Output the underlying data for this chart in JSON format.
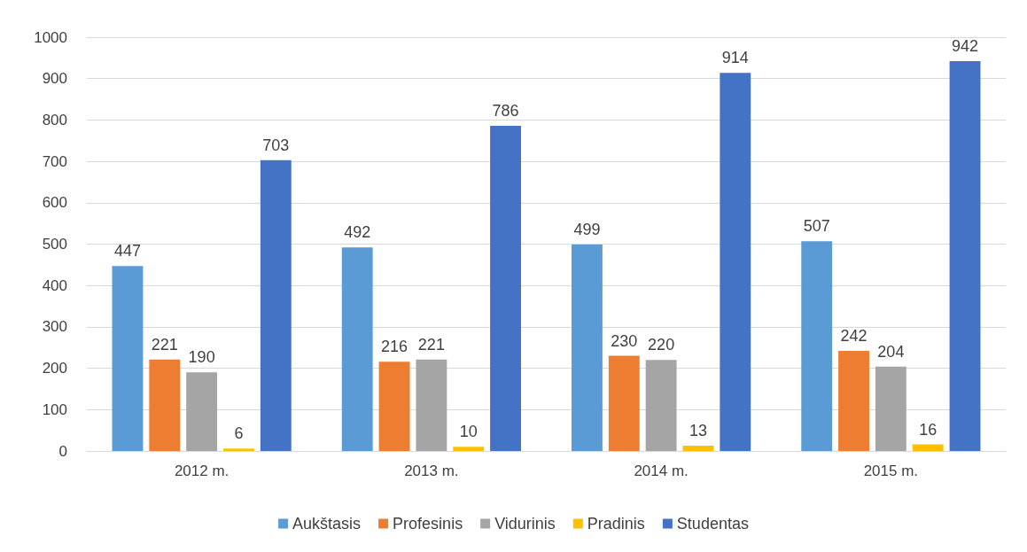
{
  "chart_data": {
    "type": "bar",
    "categories": [
      "2012 m.",
      "2013 m.",
      "2014 m.",
      "2015 m."
    ],
    "series": [
      {
        "name": "Aukštasis",
        "color": "#5b9bd5",
        "values": [
          447,
          492,
          499,
          507
        ]
      },
      {
        "name": "Profesinis",
        "color": "#ed7d31",
        "values": [
          221,
          216,
          230,
          242
        ]
      },
      {
        "name": "Vidurinis",
        "color": "#a5a5a5",
        "values": [
          190,
          221,
          220,
          204
        ]
      },
      {
        "name": "Pradinis",
        "color": "#ffc000",
        "values": [
          6,
          10,
          13,
          16
        ]
      },
      {
        "name": "Studentas",
        "color": "#4472c4",
        "values": [
          703,
          786,
          914,
          942
        ]
      }
    ],
    "ylim": [
      0,
      1000
    ],
    "yticks": [
      0,
      100,
      200,
      300,
      400,
      500,
      600,
      700,
      800,
      900,
      1000
    ],
    "grid": "y",
    "legend": "bottom",
    "data_labels": true
  }
}
